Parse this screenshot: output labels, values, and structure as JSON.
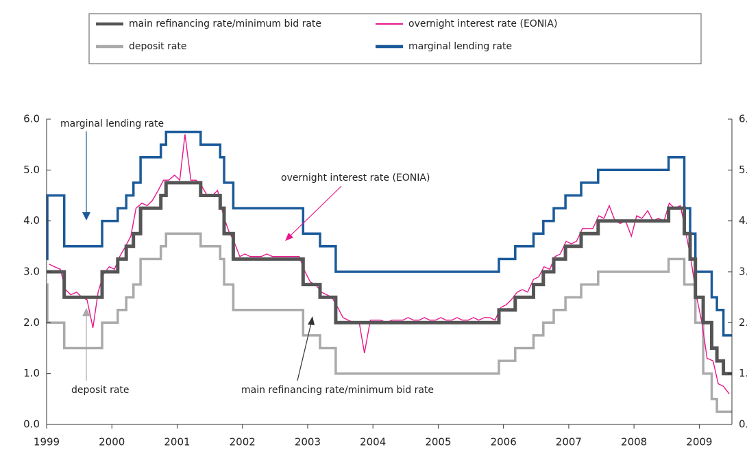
{
  "chart_data": {
    "type": "line",
    "annotations": [
      "marginal lending rate",
      "overnight interest rate (EONIA)",
      "deposit rate",
      "main refinancing rate/minimum bid rate"
    ],
    "xlim": [
      1999,
      2009.5
    ],
    "xticks": [
      1999,
      2000,
      2001,
      2002,
      2003,
      2004,
      2005,
      2006,
      2007,
      2008,
      2009
    ],
    "ylim": [
      0,
      6
    ],
    "yticks": [
      {
        "value": 0,
        "label": "0.0"
      },
      {
        "value": 1,
        "label": "1.0"
      },
      {
        "value": 2,
        "label": "2.0"
      },
      {
        "value": 3,
        "label": "3.0"
      },
      {
        "value": 4,
        "label": "4.0"
      },
      {
        "value": 5,
        "label": "5.0"
      },
      {
        "value": 6,
        "label": "6.0"
      }
    ],
    "series": [
      {
        "name": "main refinancing rate/minimum bid rate",
        "color": "#555555",
        "x": [
          1999,
          1999.27,
          1999.27,
          1999.85,
          1999.85,
          2000.09,
          2000.09,
          2000.22,
          2000.22,
          2000.33,
          2000.33,
          2000.44,
          2000.44,
          2000.75,
          2000.75,
          2000.83,
          2000.83,
          2001.36,
          2001.36,
          2001.66,
          2001.66,
          2001.72,
          2001.72,
          2001.86,
          2001.86,
          2002.93,
          2002.93,
          2003.19,
          2003.19,
          2003.43,
          2003.43,
          2005.93,
          2005.93,
          2006.18,
          2006.18,
          2006.46,
          2006.46,
          2006.61,
          2006.61,
          2006.77,
          2006.77,
          2006.95,
          2006.95,
          2007.19,
          2007.19,
          2007.45,
          2007.45,
          2008.53,
          2008.53,
          2008.77,
          2008.77,
          2008.86,
          2008.86,
          2008.94,
          2008.94,
          2009.06,
          2009.06,
          2009.19,
          2009.19,
          2009.27,
          2009.27,
          2009.37,
          2009.37,
          2009.5
        ],
        "values": [
          3,
          3,
          2.5,
          2.5,
          3,
          3,
          3.25,
          3.25,
          3.5,
          3.5,
          3.75,
          3.75,
          4.25,
          4.25,
          4.5,
          4.5,
          4.75,
          4.75,
          4.5,
          4.5,
          4.25,
          4.25,
          3.75,
          3.75,
          3.25,
          3.25,
          2.75,
          2.75,
          2.5,
          2.5,
          2,
          2,
          2.25,
          2.25,
          2.5,
          2.5,
          2.75,
          2.75,
          3,
          3,
          3.25,
          3.25,
          3.5,
          3.5,
          3.75,
          3.75,
          4,
          4,
          4.25,
          4.25,
          3.75,
          3.75,
          3.25,
          3.25,
          2.5,
          2.5,
          2,
          2,
          1.5,
          1.5,
          1.25,
          1.25,
          1,
          1
        ]
      },
      {
        "name": "overnight interest rate (EONIA)",
        "color": "#e6178c",
        "x": [
          1999.04,
          1999.12,
          1999.21,
          1999.29,
          1999.37,
          1999.46,
          1999.54,
          1999.62,
          1999.71,
          1999.79,
          1999.87,
          1999.96,
          2000.04,
          2000.12,
          2000.21,
          2000.29,
          2000.37,
          2000.46,
          2000.54,
          2000.62,
          2000.71,
          2000.79,
          2000.87,
          2000.96,
          2001.04,
          2001.12,
          2001.21,
          2001.29,
          2001.37,
          2001.46,
          2001.54,
          2001.62,
          2001.71,
          2001.79,
          2001.87,
          2001.96,
          2002.04,
          2002.12,
          2002.21,
          2002.29,
          2002.37,
          2002.46,
          2002.54,
          2002.62,
          2002.71,
          2002.79,
          2002.87,
          2002.96,
          2003.04,
          2003.12,
          2003.21,
          2003.29,
          2003.37,
          2003.46,
          2003.54,
          2003.62,
          2003.71,
          2003.79,
          2003.87,
          2003.96,
          2004.04,
          2004.12,
          2004.21,
          2004.29,
          2004.37,
          2004.46,
          2004.54,
          2004.62,
          2004.71,
          2004.79,
          2004.87,
          2004.96,
          2005.04,
          2005.12,
          2005.21,
          2005.29,
          2005.37,
          2005.46,
          2005.54,
          2005.62,
          2005.71,
          2005.79,
          2005.87,
          2005.96,
          2006.04,
          2006.12,
          2006.21,
          2006.29,
          2006.37,
          2006.46,
          2006.54,
          2006.62,
          2006.71,
          2006.79,
          2006.87,
          2006.96,
          2007.04,
          2007.12,
          2007.21,
          2007.29,
          2007.37,
          2007.46,
          2007.54,
          2007.62,
          2007.71,
          2007.79,
          2007.87,
          2007.96,
          2008.04,
          2008.12,
          2008.21,
          2008.29,
          2008.37,
          2008.46,
          2008.54,
          2008.62,
          2008.71,
          2008.79,
          2008.87,
          2008.96,
          2009.04,
          2009.12,
          2009.21,
          2009.29,
          2009.37,
          2009.46
        ],
        "values": [
          3.15,
          3.1,
          3.05,
          2.65,
          2.55,
          2.6,
          2.5,
          2.45,
          1.9,
          2.6,
          2.95,
          3.1,
          3.05,
          3.3,
          3.5,
          3.7,
          4.25,
          4.35,
          4.3,
          4.4,
          4.6,
          4.8,
          4.8,
          4.9,
          4.8,
          5.7,
          4.8,
          4.8,
          4.7,
          4.5,
          4.5,
          4.6,
          4.1,
          3.8,
          3.6,
          3.3,
          3.35,
          3.3,
          3.3,
          3.3,
          3.35,
          3.3,
          3.3,
          3.3,
          3.3,
          3.3,
          3.3,
          3.0,
          2.8,
          2.75,
          2.6,
          2.55,
          2.5,
          2.3,
          2.1,
          2.05,
          2.0,
          2.0,
          1.4,
          2.05,
          2.05,
          2.05,
          2.0,
          2.05,
          2.05,
          2.05,
          2.1,
          2.05,
          2.05,
          2.1,
          2.05,
          2.05,
          2.1,
          2.05,
          2.05,
          2.1,
          2.05,
          2.05,
          2.1,
          2.05,
          2.1,
          2.1,
          2.05,
          2.3,
          2.35,
          2.45,
          2.6,
          2.65,
          2.6,
          2.85,
          2.9,
          3.1,
          3.05,
          3.3,
          3.35,
          3.6,
          3.55,
          3.6,
          3.85,
          3.85,
          3.85,
          4.1,
          4.05,
          4.3,
          4.0,
          3.95,
          4.0,
          3.7,
          4.1,
          4.05,
          4.2,
          4.0,
          4.05,
          4.0,
          4.35,
          4.25,
          4.3,
          3.8,
          3.25,
          2.5,
          2.0,
          1.3,
          1.25,
          0.8,
          0.75,
          0.6
        ]
      },
      {
        "name": "deposit rate",
        "color": "#aaaaaa",
        "x": [
          1999,
          1999.01,
          1999.01,
          1999.27,
          1999.27,
          1999.85,
          1999.85,
          2000.09,
          2000.09,
          2000.22,
          2000.22,
          2000.33,
          2000.33,
          2000.44,
          2000.44,
          2000.75,
          2000.75,
          2000.83,
          2000.83,
          2001.36,
          2001.36,
          2001.66,
          2001.66,
          2001.72,
          2001.72,
          2001.86,
          2001.86,
          2002.93,
          2002.93,
          2003.19,
          2003.19,
          2003.43,
          2003.43,
          2005.93,
          2005.93,
          2006.18,
          2006.18,
          2006.46,
          2006.46,
          2006.61,
          2006.61,
          2006.77,
          2006.77,
          2006.95,
          2006.95,
          2007.19,
          2007.19,
          2007.45,
          2007.45,
          2008.53,
          2008.53,
          2008.77,
          2008.77,
          2008.86,
          2008.86,
          2008.94,
          2008.94,
          2009.06,
          2009.06,
          2009.19,
          2009.19,
          2009.27,
          2009.27,
          2009.37,
          2009.37,
          2009.5
        ],
        "values": [
          2.75,
          2.75,
          2,
          2,
          1.5,
          1.5,
          2,
          2,
          2.25,
          2.25,
          2.5,
          2.5,
          2.75,
          2.75,
          3.25,
          3.25,
          3.5,
          3.5,
          3.75,
          3.75,
          3.5,
          3.5,
          3.25,
          3.25,
          2.75,
          2.75,
          2.25,
          2.25,
          1.75,
          1.75,
          1.5,
          1.5,
          1,
          1,
          1.25,
          1.25,
          1.5,
          1.5,
          1.75,
          1.75,
          2,
          2,
          2.25,
          2.25,
          2.5,
          2.5,
          2.75,
          2.75,
          3,
          3,
          3.25,
          3.25,
          2.75,
          2.75,
          2.75,
          2.75,
          2,
          2,
          1,
          1,
          0.5,
          0.5,
          0.25,
          0.25,
          0.25,
          0.25
        ]
      },
      {
        "name": "marginal lending rate",
        "color": "#1a5a9a",
        "x": [
          1999,
          1999.01,
          1999.01,
          1999.27,
          1999.27,
          1999.85,
          1999.85,
          2000.09,
          2000.09,
          2000.22,
          2000.22,
          2000.33,
          2000.33,
          2000.44,
          2000.44,
          2000.75,
          2000.75,
          2000.83,
          2000.83,
          2001.36,
          2001.36,
          2001.66,
          2001.66,
          2001.72,
          2001.72,
          2001.86,
          2001.86,
          2002.93,
          2002.93,
          2003.19,
          2003.19,
          2003.43,
          2003.43,
          2005.93,
          2005.93,
          2006.18,
          2006.18,
          2006.46,
          2006.46,
          2006.61,
          2006.61,
          2006.77,
          2006.77,
          2006.95,
          2006.95,
          2007.19,
          2007.19,
          2007.45,
          2007.45,
          2008.53,
          2008.53,
          2008.77,
          2008.77,
          2008.86,
          2008.86,
          2008.94,
          2008.94,
          2009.06,
          2009.06,
          2009.19,
          2009.19,
          2009.27,
          2009.27,
          2009.37,
          2009.37,
          2009.5
        ],
        "values": [
          3.25,
          3.25,
          4.5,
          4.5,
          3.5,
          3.5,
          4,
          4,
          4.25,
          4.25,
          4.5,
          4.5,
          4.75,
          4.75,
          5.25,
          5.25,
          5.5,
          5.5,
          5.75,
          5.75,
          5.5,
          5.5,
          5.25,
          5.25,
          4.75,
          4.75,
          4.25,
          4.25,
          3.75,
          3.75,
          3.5,
          3.5,
          3,
          3,
          3.25,
          3.25,
          3.5,
          3.5,
          3.75,
          3.75,
          4,
          4,
          4.25,
          4.25,
          4.5,
          4.5,
          4.75,
          4.75,
          5,
          5,
          5.25,
          5.25,
          4.25,
          4.25,
          3.75,
          3.75,
          3,
          3,
          3,
          3,
          2.5,
          2.5,
          2.25,
          2.25,
          1.75,
          1.75
        ]
      }
    ]
  }
}
